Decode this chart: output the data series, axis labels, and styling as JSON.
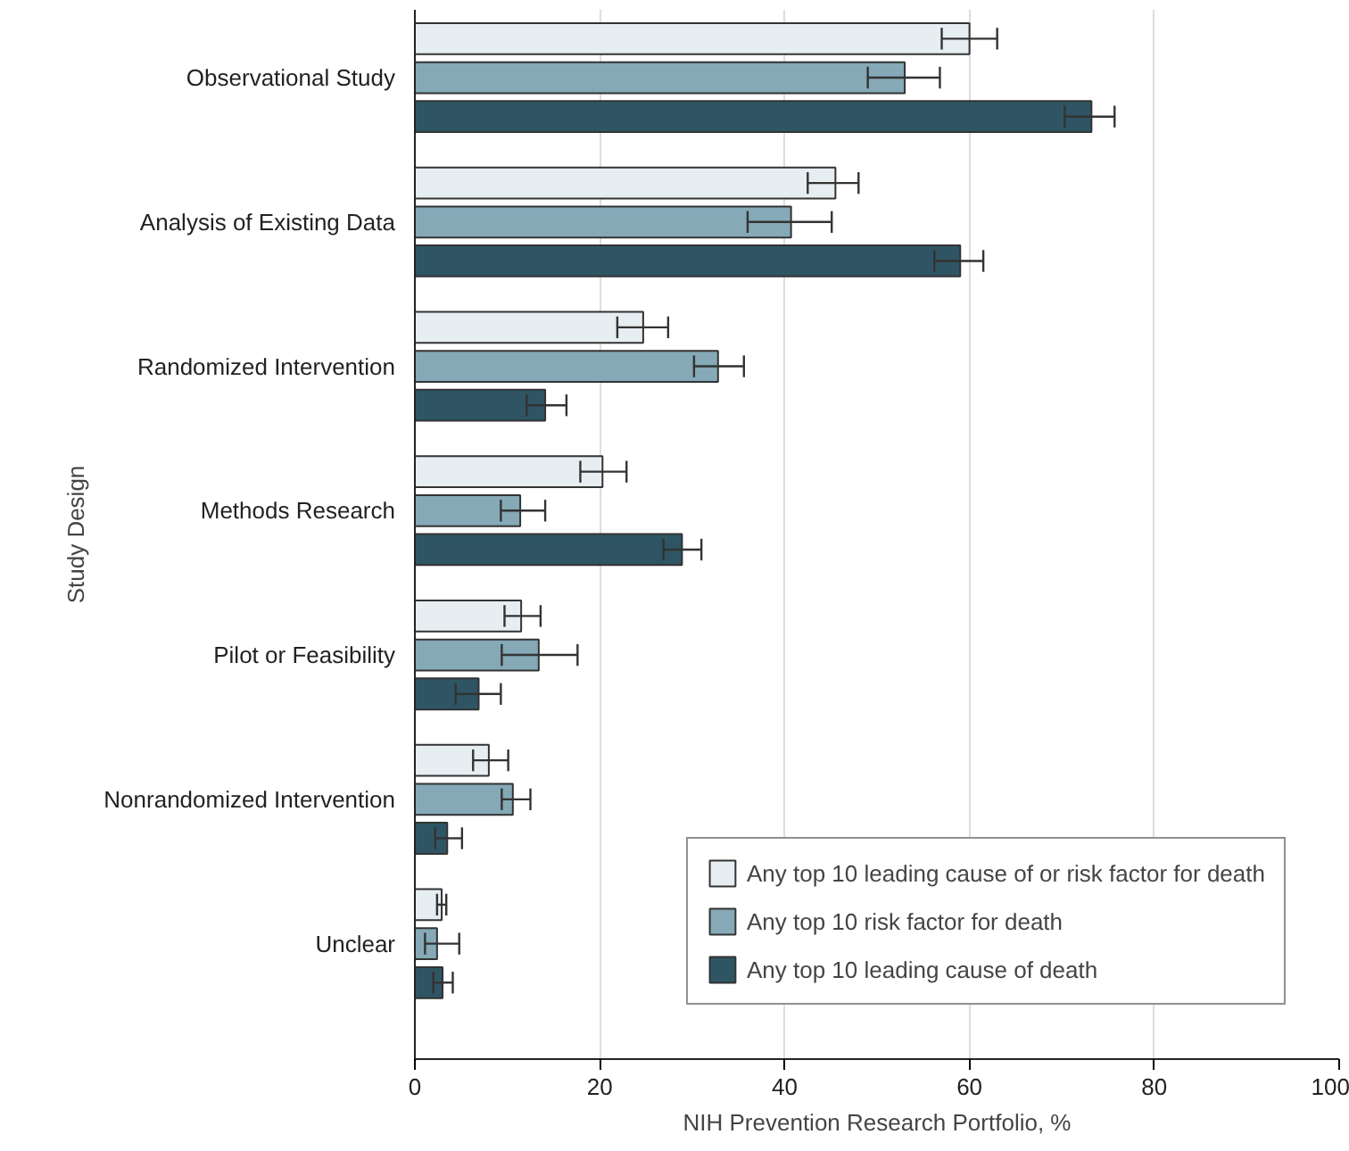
{
  "chart_data": {
    "type": "bar",
    "orientation": "horizontal",
    "categories": [
      "Observational Study",
      "Analysis of Existing Data",
      "Randomized Intervention",
      "Methods Research",
      "Pilot or Feasibility",
      "Nonrandomized Intervention",
      "Unclear"
    ],
    "series": [
      {
        "name": "Any top 10 leading cause of or risk factor for death",
        "color": "#e6eef1",
        "values": [
          60.0,
          45.5,
          24.7,
          20.3,
          11.5,
          8.0,
          2.9
        ],
        "errors": [
          [
            57.0,
            63.0
          ],
          [
            42.5,
            48.0
          ],
          [
            21.9,
            27.4
          ],
          [
            17.9,
            22.9
          ],
          [
            9.7,
            13.6
          ],
          [
            6.3,
            10.1
          ],
          [
            2.4,
            3.4
          ]
        ]
      },
      {
        "name": "Any top 10 risk factor for death",
        "color": "#85a9b7",
        "values": [
          53.0,
          40.7,
          32.8,
          11.4,
          13.4,
          10.6,
          2.4
        ],
        "errors": [
          [
            49.0,
            56.8
          ],
          [
            36.0,
            45.1
          ],
          [
            30.2,
            35.6
          ],
          [
            9.3,
            14.1
          ],
          [
            9.4,
            17.6
          ],
          [
            9.4,
            12.5
          ],
          [
            1.1,
            4.8
          ]
        ]
      },
      {
        "name": "Any top 10 leading cause of death",
        "color": "#2f5564",
        "values": [
          73.2,
          59.0,
          14.1,
          28.9,
          6.9,
          3.5,
          3.0
        ],
        "errors": [
          [
            70.3,
            75.7
          ],
          [
            56.2,
            61.5
          ],
          [
            12.1,
            16.4
          ],
          [
            26.9,
            31.0
          ],
          [
            4.4,
            9.3
          ],
          [
            2.2,
            5.1
          ],
          [
            2.0,
            4.1
          ]
        ]
      }
    ],
    "xlabel": "NIH Prevention Research Portfolio, %",
    "ylabel": "Study Design",
    "xlim": [
      0,
      100
    ],
    "xticks": [
      0,
      20,
      40,
      60,
      80,
      100
    ],
    "grid": "x",
    "legend": "bottom right"
  }
}
